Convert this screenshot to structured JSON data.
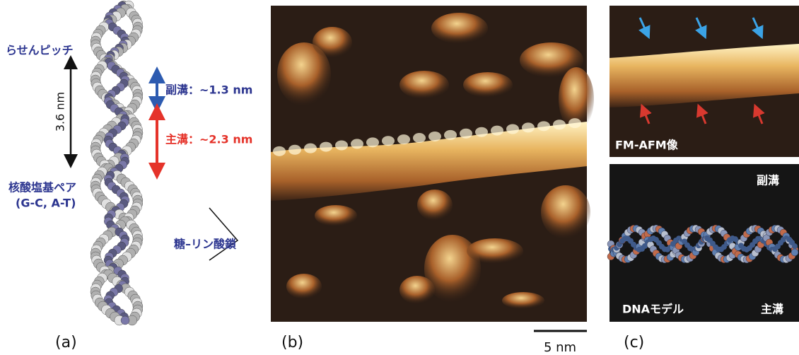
{
  "panel_labels": [
    "(a)",
    "(b)",
    "(c)"
  ],
  "panel_a": {
    "helix_pitch": "らせんピッチ",
    "pitch_length": "3.6 nm",
    "minor_groove": "副溝：~1.3 nm",
    "major_groove": "主溝：~2.3 nm",
    "base_pair": "核酸塩基ペア",
    "base_pair_types": "(G-C, A-T)",
    "backbone": "糖–リン酸鎖"
  },
  "panel_b": {
    "scale_bar": "5 nm"
  },
  "panel_c": {
    "afm_label": "FM-AFM像",
    "minor_groove": "副溝",
    "model_label": "DNAモデル",
    "major_groove": "主溝"
  }
}
